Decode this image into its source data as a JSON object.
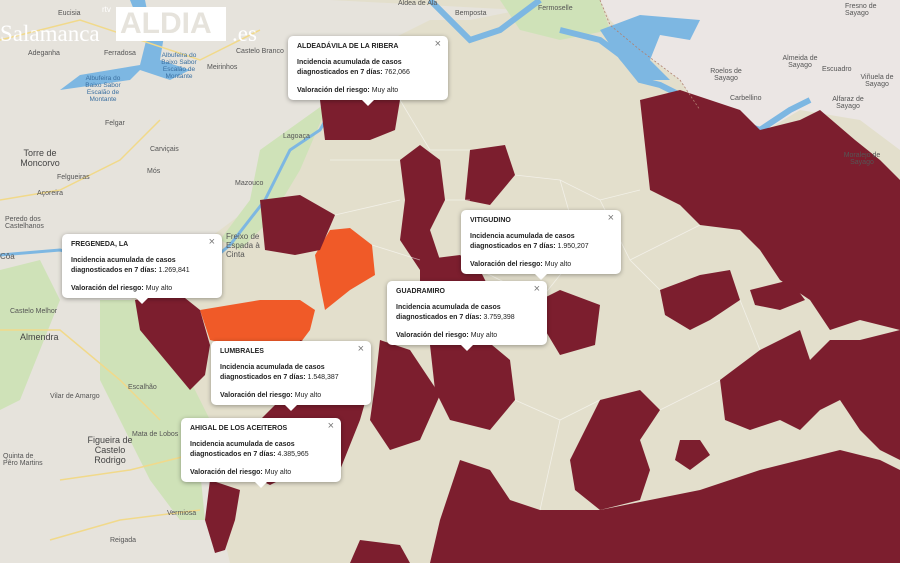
{
  "logo": {
    "salamanca": "Salamanca",
    "rtv": "rtv",
    "aldia": "ALDIA",
    "es": ".es"
  },
  "colors": {
    "very_high_risk": "#7c1e2e",
    "high_risk": "#f05a28",
    "spain_background": "#e3dfcc",
    "portugal_background": "#e8e6e1",
    "water": "#7db7e2",
    "protected_area": "#cfe2b8"
  },
  "places": {
    "eucisia": "Eucisia",
    "adeganha": "Adeganha",
    "ferradosa": "Ferradosa",
    "albufeira1": "Albufeira do Baixo Sabor Escalão de Montante",
    "albufeira2": "Albufeira do Baixo Sabor Escalão de Montante",
    "meirinhos": "Meirinhos",
    "castelo_branco": "Castelo Branco",
    "felgar": "Felgar",
    "torre": "Torre de Moncorvo",
    "carviçais": "Carviçais",
    "felgueiras": "Felgueiras",
    "mos": "Mós",
    "mazouco": "Mazouco",
    "acoreira": "Açoreira",
    "lagoaça": "Lagoaça",
    "peredo": "Peredo dos Castelhanos",
    "castelo_melhor": "Castelo Melhor",
    "almendra": "Almendra",
    "escalhao": "Escalhão",
    "vilar": "Vilar de Amargo",
    "figueira": "Figueira de Castelo Rodrigo",
    "mata": "Mata de Lobos",
    "quinta": "Quinta de Pêro Martins",
    "vermiosa": "Vermiosa",
    "reigada": "Reigada",
    "freixo": "Freixo de Espada à Cinta",
    "coa": "Côa",
    "bemposta": "Bemposta",
    "fermoselle": "Fermoselle",
    "freixo_sayago": "Fresno de Sayago",
    "roelos": "Roelos de Sayago",
    "almeida": "Almeida de Sayago",
    "escuadro": "Escuadro",
    "vinuela": "Viñuela de Sayago",
    "carbellino": "Carbellino",
    "alfaraz": "Alfaraz de Sayago",
    "moralejo": "Moralejo de Sayago",
    "aldea_ala": "Aldea de Ala"
  },
  "popups": [
    {
      "title": "ALDEADÁVILA DE LA RIBERA",
      "incidence_label": "Incidencia acumulada de casos diagnosticados en 7 días:",
      "incidence_value": "762,066",
      "risk_label": "Valoración del riesgo:",
      "risk_value": "Muy alto"
    },
    {
      "title": "FREGENEDA, LA",
      "incidence_label": "Incidencia acumulada de casos diagnosticados en 7 días:",
      "incidence_value": "1.269,841",
      "risk_label": "Valoración del riesgo:",
      "risk_value": "Muy alto"
    },
    {
      "title": "VITIGUDINO",
      "incidence_label": "Incidencia acumulada de casos diagnosticados en 7 días:",
      "incidence_value": "1.950,207",
      "risk_label": "Valoración del riesgo:",
      "risk_value": "Muy alto"
    },
    {
      "title": "GUADRAMIRO",
      "incidence_label": "Incidencia acumulada de casos diagnosticados en 7 días:",
      "incidence_value": "3.759,398",
      "risk_label": "Valoración del riesgo:",
      "risk_value": "Muy alto"
    },
    {
      "title": "LUMBRALES",
      "incidence_label": "Incidencia acumulada de casos diagnosticados en 7 días:",
      "incidence_value": "1.548,387",
      "risk_label": "Valoración del riesgo:",
      "risk_value": "Muy alto"
    },
    {
      "title": "AHIGAL DE LOS ACEITEROS",
      "incidence_label": "Incidencia acumulada de casos diagnosticados en 7 días:",
      "incidence_value": "4.385,965",
      "risk_label": "Valoración del riesgo:",
      "risk_value": "Muy alto"
    }
  ],
  "close_icon": "×"
}
